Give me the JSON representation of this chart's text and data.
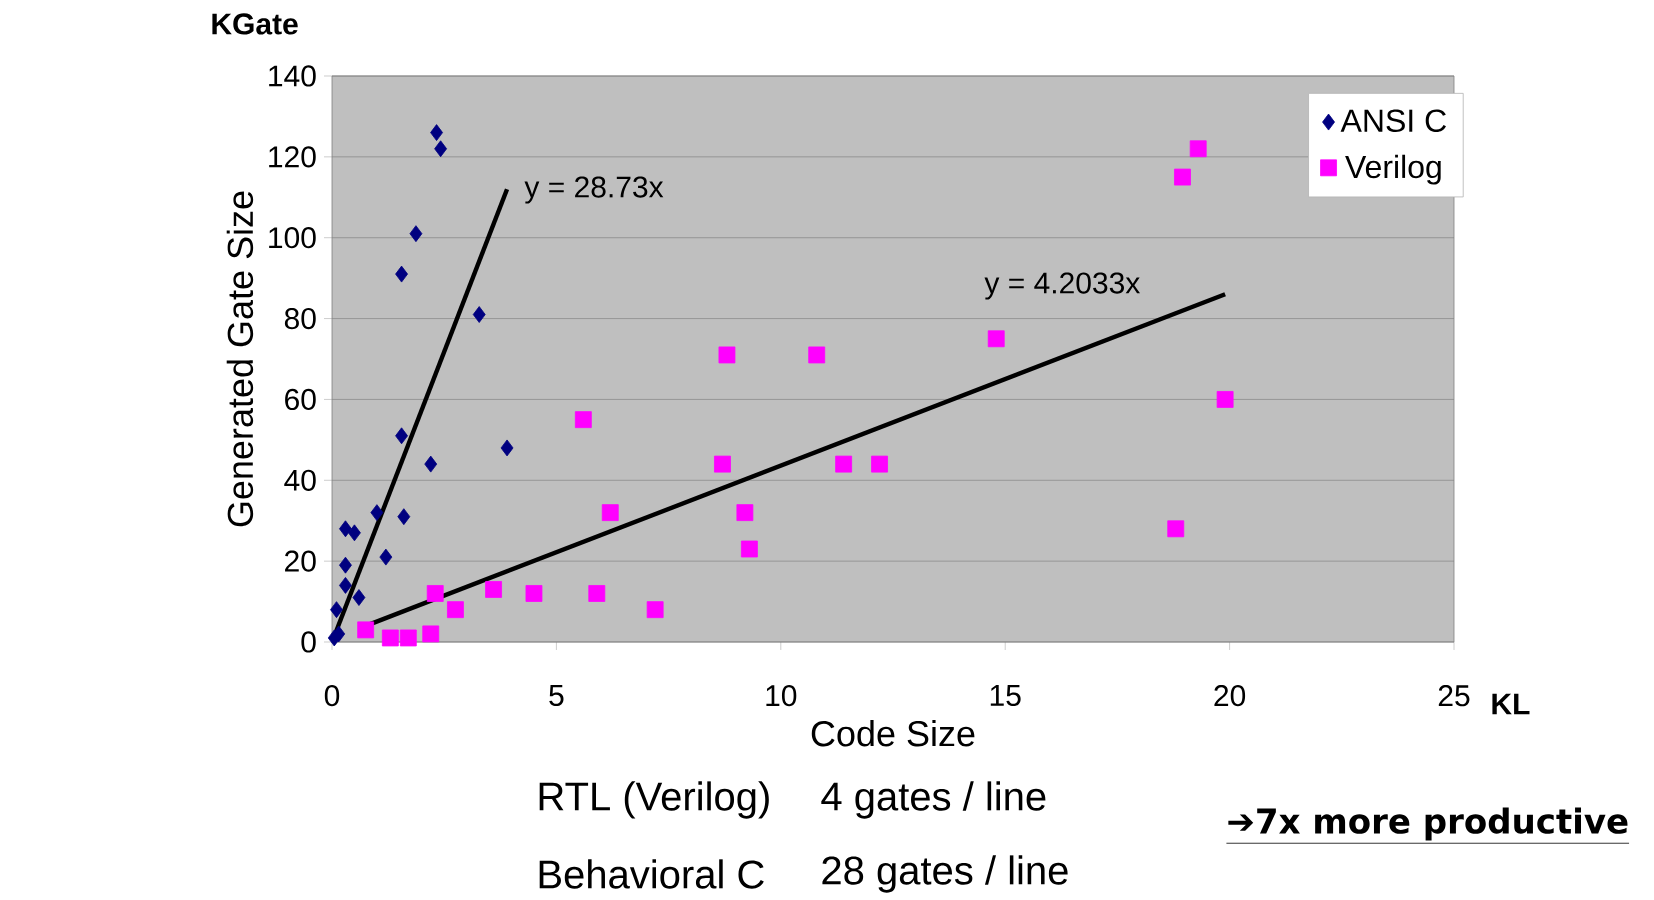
{
  "chart_data": {
    "type": "scatter",
    "xlabel": "Code Size",
    "ylabel": "Generated Gate Size",
    "xlim": [
      0,
      25
    ],
    "ylim": [
      0,
      140
    ],
    "xticks": [
      0,
      5,
      10,
      15,
      20,
      25
    ],
    "yticks": [
      0,
      20,
      40,
      60,
      80,
      100,
      120,
      140
    ],
    "grid": "y",
    "legend": "top right",
    "series": [
      {
        "name": "ANSI C",
        "color": "#000080",
        "marker": "diamond",
        "x": [
          2.33,
          2.42,
          1.87,
          1.55,
          3.28,
          3.9,
          1.55,
          2.2,
          1.6,
          1.0,
          0.3,
          0.5,
          1.2,
          0.3,
          0.3,
          0.6,
          0.1,
          0.15,
          0.05
        ],
        "values": [
          126,
          122,
          101,
          91,
          81,
          48,
          51,
          44,
          31,
          32,
          28,
          27,
          21,
          19,
          14,
          11,
          8,
          2,
          1
        ]
      },
      {
        "name": "Verilog",
        "color": "#ff00ff",
        "marker": "square",
        "x": [
          2.3,
          2.75,
          3.6,
          4.5,
          5.9,
          7.2,
          5.6,
          6.2,
          0.75,
          1.3,
          1.7,
          2.2,
          8.8,
          10.8,
          14.8,
          8.7,
          11.4,
          12.2,
          9.2,
          9.3,
          18.8,
          19.9,
          19.3,
          18.95
        ],
        "values": [
          12,
          8,
          13,
          12,
          12,
          8,
          55,
          32,
          3,
          1,
          1,
          2,
          71,
          71,
          75,
          44,
          44,
          44,
          32,
          23,
          28,
          60,
          122,
          115
        ]
      },
      {
        "type": "line",
        "color": "#000000",
        "marker": "none",
        "x": [
          0,
          3.9
        ],
        "values": [
          0,
          112
        ]
      },
      {
        "type": "line",
        "color": "#000000",
        "marker": "none",
        "x": [
          0.75,
          19.9
        ],
        "values": [
          4,
          86
        ]
      }
    ],
    "annotations": [
      "KGate",
      "KL",
      "RTL (Verilog)",
      "4 gates / line",
      "Behavioral C",
      "28 gates / line",
      "➔7x more productive",
      "y = 28.73x",
      "y = 4.2033x"
    ]
  }
}
